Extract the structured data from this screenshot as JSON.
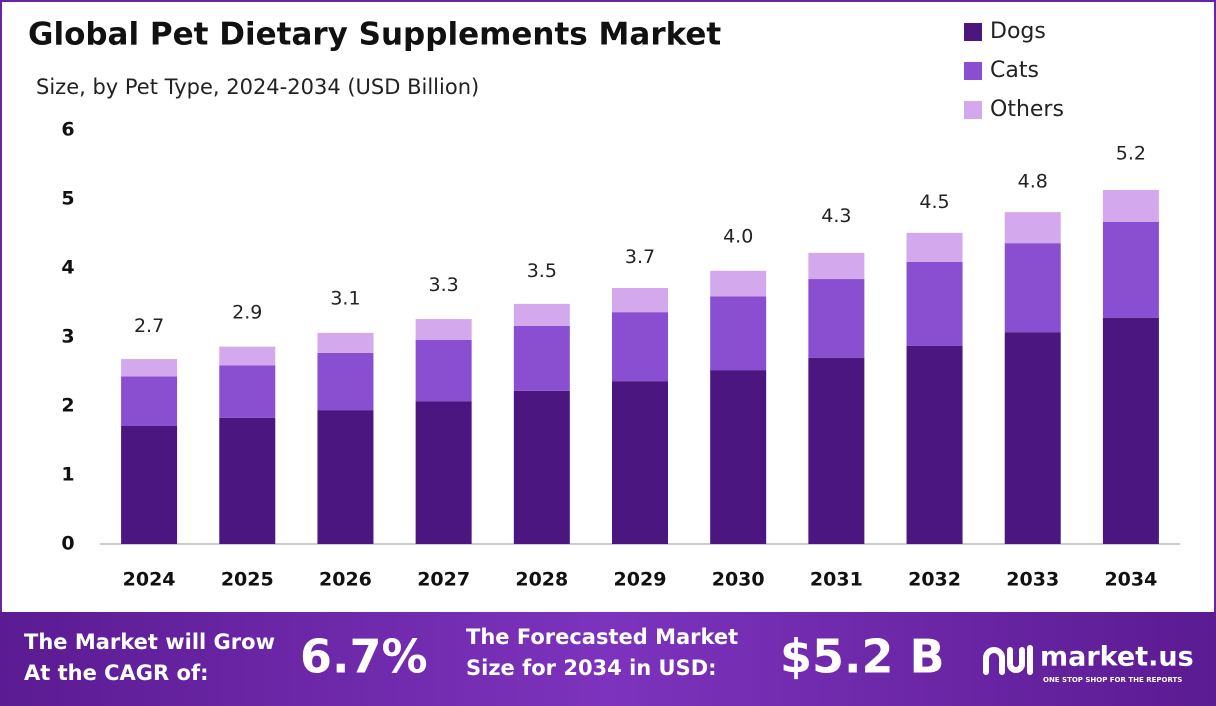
{
  "chart_data": {
    "type": "stacked_bar",
    "title": "Global Pet Dietary Supplements Market",
    "subtitle": "Size, by Pet Type, 2024-2034 (USD Billion)",
    "categories": [
      "2024",
      "2025",
      "2026",
      "2027",
      "2028",
      "2029",
      "2030",
      "2031",
      "2032",
      "2033",
      "2034"
    ],
    "series": [
      {
        "name": "Dogs",
        "color": "#4b1680",
        "values": [
          1.71,
          1.83,
          1.94,
          2.07,
          2.22,
          2.36,
          2.52,
          2.7,
          2.87,
          3.07,
          3.28
        ]
      },
      {
        "name": "Cats",
        "color": "#8a4fd0",
        "values": [
          0.72,
          0.76,
          0.83,
          0.89,
          0.94,
          1.0,
          1.07,
          1.14,
          1.22,
          1.29,
          1.39
        ]
      },
      {
        "name": "Others",
        "color": "#d3a8ec",
        "values": [
          0.25,
          0.27,
          0.29,
          0.3,
          0.32,
          0.35,
          0.37,
          0.38,
          0.42,
          0.45,
          0.46
        ]
      }
    ],
    "totals": {
      "values": [
        2.7,
        2.9,
        3.1,
        3.3,
        3.5,
        3.7,
        4.0,
        4.3,
        4.5,
        4.8,
        5.2
      ],
      "value_labels": [
        "2.7",
        "2.9",
        "3.1",
        "3.3",
        "3.5",
        "3.7",
        "4.0",
        "4.3",
        "4.5",
        "4.8",
        "5.2"
      ]
    },
    "ylim": [
      0,
      6
    ],
    "yticks": [
      0,
      1,
      2,
      3,
      4,
      5,
      6
    ],
    "grid": false,
    "legend": "top-right"
  },
  "footer": {
    "cagr_lines": [
      "The Market will Grow",
      "At the CAGR of:"
    ],
    "cagr": "6.7%",
    "forecast_lines": [
      "The Forecasted Market",
      "Size for 2034 in USD:"
    ],
    "forecast": "$5.2 B",
    "brand": "market.us",
    "tagline": "ONE STOP SHOP FOR THE REPORTS"
  }
}
